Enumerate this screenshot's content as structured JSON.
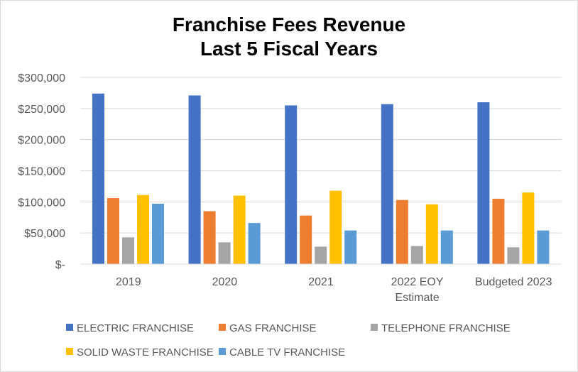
{
  "chart_data": {
    "type": "bar",
    "title": [
      "Franchise Fees Revenue",
      "Last 5 Fiscal Years"
    ],
    "categories": [
      [
        "2019"
      ],
      [
        "2020"
      ],
      [
        "2021"
      ],
      [
        "2022 EOY",
        "Estimate"
      ],
      [
        "Budgeted 2023"
      ]
    ],
    "ylim": [
      0,
      300000
    ],
    "yticks": [
      0,
      50000,
      100000,
      150000,
      200000,
      250000,
      300000
    ],
    "ytick_labels": [
      "$-",
      "$50,000",
      "$100,000",
      "$150,000",
      "$200,000",
      "$250,000",
      "$300,000"
    ],
    "grid": true,
    "legend_position": "bottom",
    "series": [
      {
        "name": "ELECTRIC FRANCHISE",
        "color": "#4472C4",
        "values": [
          274000,
          271000,
          255000,
          257000,
          260000
        ]
      },
      {
        "name": "GAS FRANCHISE",
        "color": "#ED7D31",
        "values": [
          106000,
          85000,
          78000,
          103000,
          105000
        ]
      },
      {
        "name": "TELEPHONE FRANCHISE",
        "color": "#A5A5A5",
        "values": [
          43000,
          35000,
          28000,
          29000,
          27000
        ]
      },
      {
        "name": "SOLID WASTE FRANCHISE",
        "color": "#FFC000",
        "values": [
          111000,
          110000,
          118000,
          96000,
          115000
        ]
      },
      {
        "name": "CABLE TV FRANCHISE",
        "color": "#5B9BD5",
        "values": [
          97000,
          66000,
          54000,
          54000,
          54000
        ]
      }
    ]
  }
}
